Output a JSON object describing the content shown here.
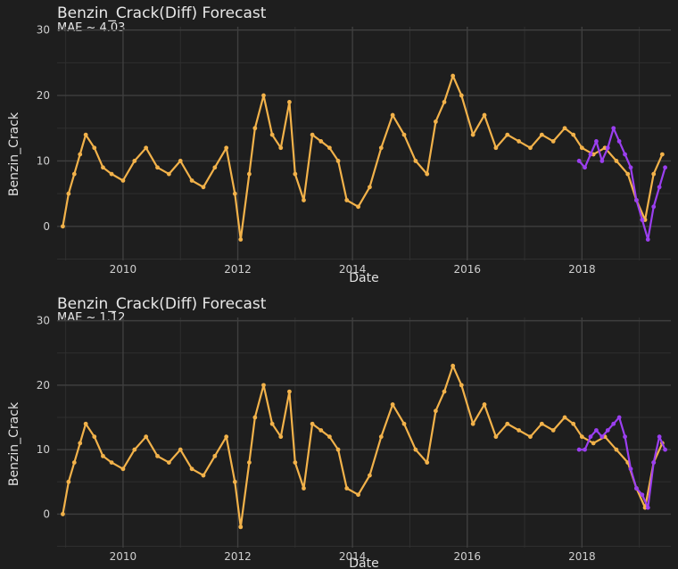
{
  "chart_data": [
    {
      "type": "line",
      "title": "Benzin_Crack(Diff) Forecast",
      "subtitle": "MAE ~ 4.03",
      "xlabel": "Date",
      "ylabel": "Benzin_Crack",
      "xlim": [
        2008.85,
        2019.55
      ],
      "ylim": [
        -5.2,
        30.5
      ],
      "xticks": [
        2010,
        2012,
        2014,
        2016,
        2018
      ],
      "xtick_labels": [
        "2010",
        "2012",
        "2014",
        "2016",
        "2018"
      ],
      "yticks": [
        0,
        10,
        20,
        30
      ],
      "ytick_labels": [
        "0",
        "10",
        "20",
        "30"
      ],
      "grid": true,
      "series": [
        {
          "color": "#f2b24a",
          "x": [
            2008.95,
            2009.05,
            2009.15,
            2009.25,
            2009.35,
            2009.5,
            2009.65,
            2009.8,
            2010.0,
            2010.2,
            2010.4,
            2010.6,
            2010.8,
            2011.0,
            2011.2,
            2011.4,
            2011.6,
            2011.8,
            2011.95,
            2012.05,
            2012.2,
            2012.3,
            2012.45,
            2012.6,
            2012.75,
            2012.9,
            2013.0,
            2013.15,
            2013.3,
            2013.45,
            2013.6,
            2013.75,
            2013.9,
            2014.1,
            2014.3,
            2014.5,
            2014.7,
            2014.9,
            2015.1,
            2015.3,
            2015.45,
            2015.6,
            2015.75,
            2015.9,
            2016.1,
            2016.3,
            2016.5,
            2016.7,
            2016.9,
            2017.1,
            2017.3,
            2017.5,
            2017.7,
            2017.85,
            2018.0,
            2018.2,
            2018.4,
            2018.6,
            2018.8,
            2018.95,
            2019.1,
            2019.25,
            2019.4
          ],
          "y": [
            0,
            5,
            8,
            11,
            14,
            12,
            9,
            8,
            7,
            10,
            12,
            9,
            8,
            10,
            7,
            6,
            9,
            12,
            5,
            -2,
            8,
            15,
            20,
            14,
            12,
            19,
            8,
            4,
            14,
            13,
            12,
            10,
            4,
            3,
            6,
            12,
            17,
            14,
            10,
            8,
            16,
            19,
            23,
            20,
            14,
            17,
            12,
            14,
            13,
            12,
            14,
            13,
            15,
            14,
            12,
            11,
            12,
            10,
            8,
            4,
            1,
            8,
            11
          ]
        },
        {
          "color": "#9b3ff0",
          "x": [
            2017.95,
            2018.05,
            2018.15,
            2018.25,
            2018.35,
            2018.45,
            2018.55,
            2018.65,
            2018.75,
            2018.85,
            2018.95,
            2019.05,
            2019.15,
            2019.25,
            2019.35,
            2019.45
          ],
          "y": [
            10,
            9,
            11,
            13,
            10,
            12,
            15,
            13,
            11,
            9,
            4,
            1,
            -2,
            3,
            6,
            9
          ]
        }
      ]
    },
    {
      "type": "line",
      "title": "Benzin_Crack(Diff) Forecast",
      "subtitle": "MAE ~ 1.12",
      "xlabel": "Date",
      "ylabel": "Benzin_Crack",
      "xlim": [
        2008.85,
        2019.55
      ],
      "ylim": [
        -5.2,
        30.5
      ],
      "xticks": [
        2010,
        2012,
        2014,
        2016,
        2018
      ],
      "xtick_labels": [
        "2010",
        "2012",
        "2014",
        "2016",
        "2018"
      ],
      "yticks": [
        0,
        10,
        20,
        30
      ],
      "ytick_labels": [
        "0",
        "10",
        "20",
        "30"
      ],
      "grid": true,
      "series": [
        {
          "color": "#f2b24a",
          "x": [
            2008.95,
            2009.05,
            2009.15,
            2009.25,
            2009.35,
            2009.5,
            2009.65,
            2009.8,
            2010.0,
            2010.2,
            2010.4,
            2010.6,
            2010.8,
            2011.0,
            2011.2,
            2011.4,
            2011.6,
            2011.8,
            2011.95,
            2012.05,
            2012.2,
            2012.3,
            2012.45,
            2012.6,
            2012.75,
            2012.9,
            2013.0,
            2013.15,
            2013.3,
            2013.45,
            2013.6,
            2013.75,
            2013.9,
            2014.1,
            2014.3,
            2014.5,
            2014.7,
            2014.9,
            2015.1,
            2015.3,
            2015.45,
            2015.6,
            2015.75,
            2015.9,
            2016.1,
            2016.3,
            2016.5,
            2016.7,
            2016.9,
            2017.1,
            2017.3,
            2017.5,
            2017.7,
            2017.85,
            2018.0,
            2018.2,
            2018.4,
            2018.6,
            2018.8,
            2018.95,
            2019.1,
            2019.25,
            2019.4
          ],
          "y": [
            0,
            5,
            8,
            11,
            14,
            12,
            9,
            8,
            7,
            10,
            12,
            9,
            8,
            10,
            7,
            6,
            9,
            12,
            5,
            -2,
            8,
            15,
            20,
            14,
            12,
            19,
            8,
            4,
            14,
            13,
            12,
            10,
            4,
            3,
            6,
            12,
            17,
            14,
            10,
            8,
            16,
            19,
            23,
            20,
            14,
            17,
            12,
            14,
            13,
            12,
            14,
            13,
            15,
            14,
            12,
            11,
            12,
            10,
            8,
            4,
            1,
            8,
            11
          ]
        },
        {
          "color": "#9b3ff0",
          "x": [
            2017.95,
            2018.05,
            2018.15,
            2018.25,
            2018.35,
            2018.45,
            2018.55,
            2018.65,
            2018.75,
            2018.85,
            2018.95,
            2019.05,
            2019.15,
            2019.25,
            2019.35,
            2019.45
          ],
          "y": [
            10,
            10,
            12,
            13,
            12,
            13,
            14,
            15,
            12,
            7,
            4,
            3,
            1,
            8,
            12,
            10
          ]
        }
      ]
    }
  ]
}
